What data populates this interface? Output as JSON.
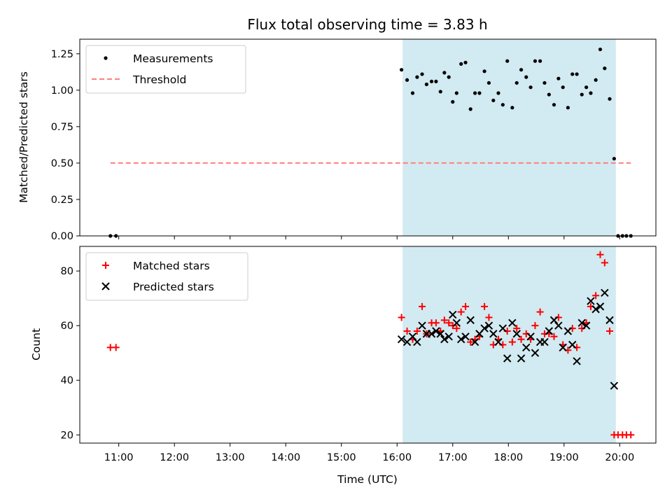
{
  "chart_data": {
    "title": "Flux total observing time = 3.83 h",
    "xlabel": "Time (UTC)",
    "x_unit": "hours (UTC)",
    "xlim": [
      10.3,
      20.65
    ],
    "xticks": [
      11,
      12,
      13,
      14,
      15,
      16,
      17,
      18,
      19,
      20
    ],
    "xtick_labels": [
      "11:00",
      "12:00",
      "13:00",
      "14:00",
      "15:00",
      "16:00",
      "17:00",
      "18:00",
      "19:00",
      "20:00"
    ],
    "shaded_span": {
      "x": [
        16.1,
        19.93
      ],
      "color": "#add8e6"
    },
    "panels": [
      {
        "type": "scatter",
        "ylabel": "Matched/Predicted stars",
        "ylim": [
          0,
          1.35
        ],
        "yticks": [
          0,
          0.25,
          0.5,
          0.75,
          1.0,
          1.25
        ],
        "ytick_labels": [
          "0.00",
          "0.25",
          "0.50",
          "0.75",
          "1.00",
          "1.25"
        ],
        "legend": {
          "position": "upper-left",
          "entries": [
            "Measurements",
            "Threshold"
          ]
        },
        "series": [
          {
            "name": "Measurements",
            "kind": "dot",
            "color": "#000000",
            "points": [
              [
                10.85,
                0
              ],
              [
                10.95,
                0
              ],
              [
                16.08,
                1.14
              ],
              [
                16.18,
                1.07
              ],
              [
                16.28,
                0.98
              ],
              [
                16.36,
                1.09
              ],
              [
                16.45,
                1.11
              ],
              [
                16.53,
                1.04
              ],
              [
                16.62,
                1.06
              ],
              [
                16.7,
                1.06
              ],
              [
                16.78,
                0.99
              ],
              [
                16.85,
                1.12
              ],
              [
                16.93,
                1.09
              ],
              [
                17.0,
                0.92
              ],
              [
                17.07,
                0.98
              ],
              [
                17.15,
                1.18
              ],
              [
                17.23,
                1.19
              ],
              [
                17.32,
                0.87
              ],
              [
                17.4,
                0.98
              ],
              [
                17.48,
                0.98
              ],
              [
                17.57,
                1.13
              ],
              [
                17.65,
                1.05
              ],
              [
                17.73,
                0.93
              ],
              [
                17.82,
                0.98
              ],
              [
                17.9,
                0.9
              ],
              [
                17.98,
                1.2
              ],
              [
                18.07,
                0.88
              ],
              [
                18.15,
                1.05
              ],
              [
                18.23,
                1.14
              ],
              [
                18.32,
                1.09
              ],
              [
                18.4,
                1.02
              ],
              [
                18.48,
                1.2
              ],
              [
                18.57,
                1.2
              ],
              [
                18.65,
                1.05
              ],
              [
                18.73,
                0.97
              ],
              [
                18.82,
                0.9
              ],
              [
                18.9,
                1.08
              ],
              [
                18.98,
                1.02
              ],
              [
                19.07,
                0.88
              ],
              [
                19.15,
                1.11
              ],
              [
                19.23,
                1.11
              ],
              [
                19.32,
                0.97
              ],
              [
                19.4,
                1.02
              ],
              [
                19.48,
                0.98
              ],
              [
                19.57,
                1.07
              ],
              [
                19.65,
                1.28
              ],
              [
                19.73,
                1.15
              ],
              [
                19.82,
                0.94
              ],
              [
                19.9,
                0.53
              ],
              [
                19.97,
                0
              ],
              [
                20.05,
                0
              ],
              [
                20.12,
                0
              ],
              [
                20.2,
                0
              ]
            ]
          },
          {
            "name": "Threshold",
            "kind": "dashed-line",
            "color": "#ff7f7f",
            "points": [
              [
                10.85,
                0.5
              ],
              [
                20.2,
                0.5
              ]
            ]
          }
        ]
      },
      {
        "type": "scatter",
        "ylabel": "Count",
        "ylim": [
          17,
          89
        ],
        "yticks": [
          20,
          40,
          60,
          80
        ],
        "ytick_labels": [
          "20",
          "40",
          "60",
          "80"
        ],
        "legend": {
          "position": "upper-left",
          "entries": [
            "Matched stars",
            "Predicted stars"
          ]
        },
        "series": [
          {
            "name": "Matched stars",
            "kind": "plus",
            "color": "#ff0000",
            "points": [
              [
                10.85,
                52
              ],
              [
                10.95,
                52
              ],
              [
                16.08,
                63
              ],
              [
                16.18,
                58
              ],
              [
                16.28,
                55
              ],
              [
                16.36,
                58
              ],
              [
                16.45,
                67
              ],
              [
                16.53,
                57
              ],
              [
                16.62,
                61
              ],
              [
                16.7,
                61
              ],
              [
                16.78,
                58
              ],
              [
                16.85,
                62
              ],
              [
                16.93,
                61
              ],
              [
                17.0,
                60
              ],
              [
                17.07,
                59
              ],
              [
                17.15,
                65
              ],
              [
                17.23,
                67
              ],
              [
                17.32,
                54
              ],
              [
                17.4,
                55
              ],
              [
                17.48,
                56
              ],
              [
                17.57,
                67
              ],
              [
                17.65,
                63
              ],
              [
                17.73,
                53
              ],
              [
                17.82,
                55
              ],
              [
                17.9,
                53
              ],
              [
                17.98,
                58
              ],
              [
                18.07,
                54
              ],
              [
                18.15,
                59
              ],
              [
                18.23,
                55
              ],
              [
                18.32,
                57
              ],
              [
                18.4,
                55
              ],
              [
                18.48,
                60
              ],
              [
                18.57,
                65
              ],
              [
                18.65,
                57
              ],
              [
                18.73,
                57
              ],
              [
                18.82,
                56
              ],
              [
                18.9,
                63
              ],
              [
                18.98,
                53
              ],
              [
                19.07,
                51
              ],
              [
                19.15,
                59
              ],
              [
                19.23,
                52
              ],
              [
                19.32,
                59
              ],
              [
                19.4,
                61
              ],
              [
                19.48,
                67
              ],
              [
                19.57,
                71
              ],
              [
                19.65,
                86
              ],
              [
                19.73,
                83
              ],
              [
                19.82,
                58
              ],
              [
                19.9,
                20
              ],
              [
                19.97,
                20
              ],
              [
                20.05,
                20
              ],
              [
                20.12,
                20
              ],
              [
                20.2,
                20
              ]
            ]
          },
          {
            "name": "Predicted stars",
            "kind": "cross",
            "color": "#000000",
            "points": [
              [
                16.08,
                55
              ],
              [
                16.18,
                54
              ],
              [
                16.28,
                56
              ],
              [
                16.36,
                54
              ],
              [
                16.45,
                60
              ],
              [
                16.53,
                57
              ],
              [
                16.62,
                57
              ],
              [
                16.7,
                58
              ],
              [
                16.78,
                57
              ],
              [
                16.85,
                55
              ],
              [
                16.93,
                56
              ],
              [
                17.0,
                64
              ],
              [
                17.07,
                61
              ],
              [
                17.15,
                55
              ],
              [
                17.23,
                56
              ],
              [
                17.32,
                62
              ],
              [
                17.4,
                54
              ],
              [
                17.48,
                57
              ],
              [
                17.57,
                59
              ],
              [
                17.65,
                60
              ],
              [
                17.73,
                57
              ],
              [
                17.82,
                54
              ],
              [
                17.9,
                59
              ],
              [
                17.98,
                48
              ],
              [
                18.07,
                61
              ],
              [
                18.15,
                57
              ],
              [
                18.23,
                48
              ],
              [
                18.32,
                52
              ],
              [
                18.4,
                56
              ],
              [
                18.48,
                50
              ],
              [
                18.57,
                54
              ],
              [
                18.65,
                54
              ],
              [
                18.73,
                58
              ],
              [
                18.82,
                62
              ],
              [
                18.9,
                60
              ],
              [
                18.98,
                52
              ],
              [
                19.07,
                58
              ],
              [
                19.15,
                53
              ],
              [
                19.23,
                47
              ],
              [
                19.32,
                61
              ],
              [
                19.4,
                60
              ],
              [
                19.48,
                69
              ],
              [
                19.57,
                66
              ],
              [
                19.65,
                67
              ],
              [
                19.73,
                72
              ],
              [
                19.82,
                62
              ],
              [
                19.9,
                38
              ]
            ]
          }
        ]
      }
    ]
  }
}
